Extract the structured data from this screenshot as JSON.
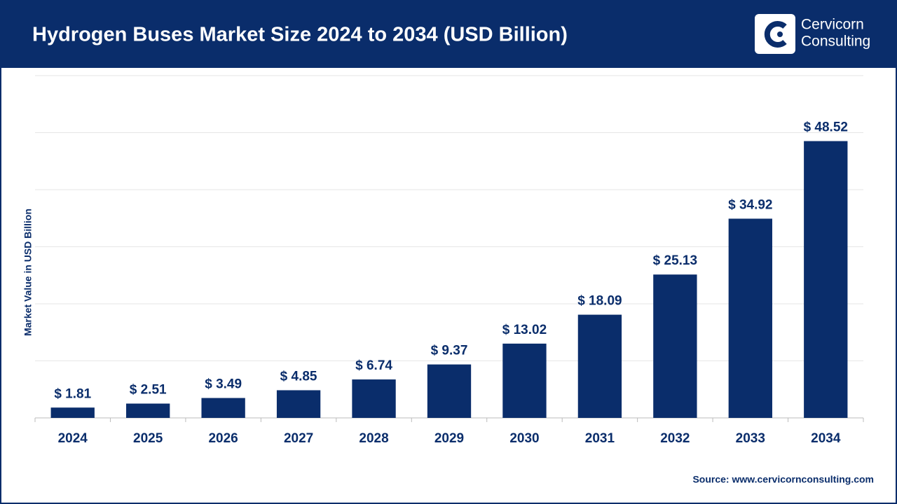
{
  "header": {
    "title": "Hydrogen Buses Market Size 2024 to 2034 (USD Billion)",
    "logo_line1": "Cervicorn",
    "logo_line2": "Consulting"
  },
  "chart_data": {
    "type": "bar",
    "y_label": "Market Value in USD Billion",
    "categories": [
      "2024",
      "2025",
      "2026",
      "2027",
      "2028",
      "2029",
      "2030",
      "2031",
      "2032",
      "2033",
      "2034"
    ],
    "values": [
      1.81,
      2.51,
      3.49,
      4.85,
      6.74,
      9.37,
      13.02,
      18.09,
      25.13,
      34.92,
      48.52
    ],
    "value_labels": [
      "$ 1.81",
      "$ 2.51",
      "$ 3.49",
      "$ 4.85",
      "$ 6.74",
      "$ 9.37",
      "$ 13.02",
      "$ 18.09",
      "$ 25.13",
      "$ 34.92",
      "$ 48.52"
    ],
    "color": "#0a2d6b",
    "ylim": [
      0,
      60
    ],
    "yticks": [
      0,
      10,
      20,
      30,
      40,
      50,
      60
    ],
    "grid": true
  },
  "footer": {
    "source": "Source: www.cervicornconsulting.com"
  }
}
